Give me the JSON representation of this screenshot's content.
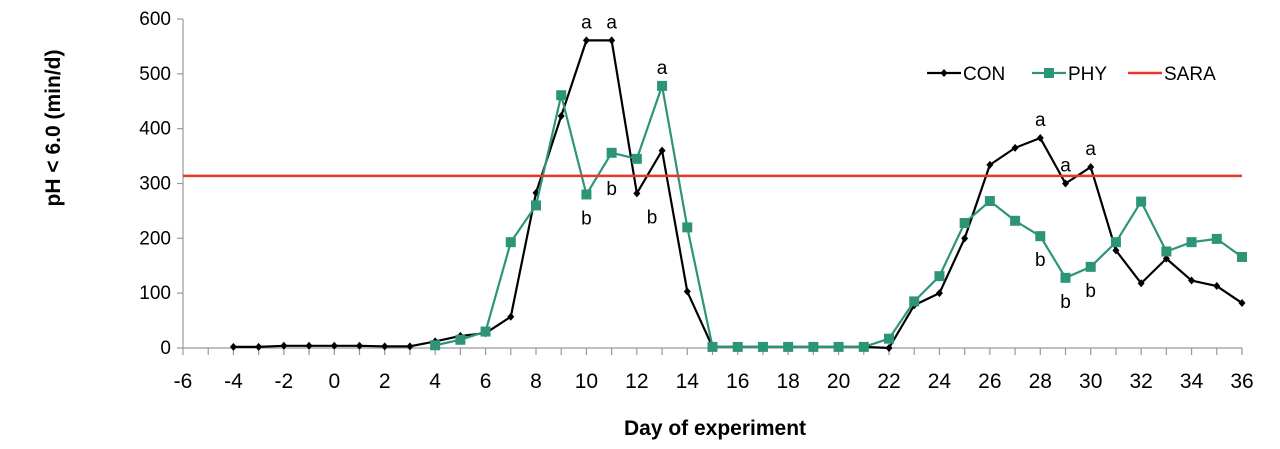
{
  "chart_data": {
    "type": "line",
    "xlabel": "Day of experiment",
    "ylabel": "pH < 6.0 (min/d)",
    "xlim": [
      -6,
      36
    ],
    "ylim": [
      0,
      600
    ],
    "xticks": [
      -6,
      -4,
      -2,
      0,
      2,
      4,
      6,
      8,
      10,
      12,
      14,
      16,
      18,
      20,
      22,
      24,
      26,
      28,
      30,
      32,
      34,
      36
    ],
    "yticks": [
      0,
      100,
      200,
      300,
      400,
      500,
      600
    ],
    "grid": false,
    "legend_position": "top-right",
    "series": [
      {
        "name": "CON",
        "color": "#000000",
        "marker": "diamond",
        "x": [
          -4,
          -3,
          -2,
          -1,
          0,
          1,
          2,
          3,
          4,
          5,
          6,
          7,
          8,
          9,
          10,
          11,
          12,
          13,
          14,
          15,
          16,
          17,
          18,
          19,
          20,
          21,
          22,
          23,
          24,
          25,
          26,
          27,
          28,
          29,
          30,
          31,
          32,
          33,
          34,
          35,
          36
        ],
        "y": [
          2,
          2,
          4,
          4,
          4,
          4,
          3,
          3,
          12,
          22,
          27,
          57,
          283,
          423,
          561,
          561,
          282,
          360,
          103,
          2,
          2,
          2,
          2,
          2,
          2,
          2,
          0,
          78,
          100,
          200,
          334,
          365,
          383,
          300,
          330,
          178,
          118,
          163,
          123,
          113,
          82
        ]
      },
      {
        "name": "PHY",
        "color": "#2e9478",
        "marker": "square",
        "x": [
          4,
          5,
          6,
          7,
          8,
          9,
          10,
          11,
          12,
          13,
          14,
          15,
          16,
          17,
          18,
          19,
          20,
          21,
          22,
          23,
          24,
          25,
          26,
          27,
          28,
          29,
          30,
          31,
          32,
          33,
          34,
          35,
          36
        ],
        "y": [
          5,
          15,
          30,
          193,
          260,
          461,
          280,
          356,
          345,
          478,
          220,
          2,
          2,
          2,
          2,
          2,
          2,
          2,
          17,
          85,
          131,
          228,
          268,
          232,
          204,
          128,
          148,
          193,
          267,
          176,
          193,
          199,
          166
        ]
      },
      {
        "name": "SARA",
        "color": "#e8382b",
        "marker": "none",
        "x": [
          -6,
          36
        ],
        "y": [
          314,
          314
        ]
      }
    ],
    "annotations": [
      {
        "text": "a",
        "x": 10,
        "y": 561,
        "pos": "above"
      },
      {
        "text": "a",
        "x": 11,
        "y": 561,
        "pos": "above"
      },
      {
        "text": "a",
        "x": 13,
        "y": 478,
        "pos": "above"
      },
      {
        "text": "b",
        "x": 10,
        "y": 280,
        "pos": "below"
      },
      {
        "text": "b",
        "x": 11,
        "y": 356,
        "pos": "below-far"
      },
      {
        "text": "b",
        "x": 12.6,
        "y": 282,
        "pos": "below"
      },
      {
        "text": "a",
        "x": 28,
        "y": 383,
        "pos": "above"
      },
      {
        "text": "a",
        "x": 29,
        "y": 300,
        "pos": "above"
      },
      {
        "text": "a",
        "x": 30,
        "y": 330,
        "pos": "above"
      },
      {
        "text": "b",
        "x": 28,
        "y": 204,
        "pos": "below"
      },
      {
        "text": "b",
        "x": 29,
        "y": 128,
        "pos": "below"
      },
      {
        "text": "b",
        "x": 30,
        "y": 148,
        "pos": "below"
      }
    ]
  }
}
